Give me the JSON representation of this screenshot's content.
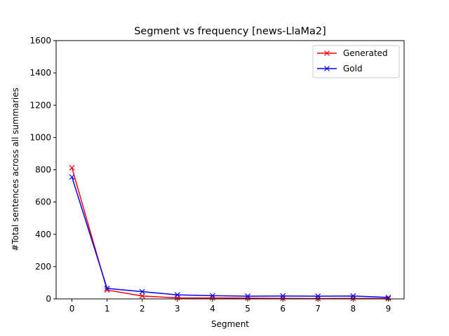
{
  "chart_data": {
    "type": "line",
    "title": "Segment vs frequency [news-LlaMa2]",
    "xlabel": "Segment",
    "ylabel": "#Total sentences across all summaries",
    "x": [
      0,
      1,
      2,
      3,
      4,
      5,
      6,
      7,
      8,
      9
    ],
    "xticks": [
      "0",
      "1",
      "2",
      "3",
      "4",
      "5",
      "6",
      "7",
      "8",
      "9"
    ],
    "xlim": [
      -0.45,
      9.45
    ],
    "ylim": [
      0,
      1600
    ],
    "yticks": [
      "0",
      "200",
      "400",
      "600",
      "800",
      "1000",
      "1200",
      "1400",
      "1600"
    ],
    "grid": false,
    "legend_position": "top-right",
    "series": [
      {
        "name": "Generated",
        "color": "#ff0000",
        "marker": "x",
        "values": [
          812,
          55,
          18,
          6,
          6,
          5,
          3,
          2,
          3,
          2
        ]
      },
      {
        "name": "Gold",
        "color": "#0000ff",
        "marker": "x",
        "values": [
          755,
          65,
          45,
          25,
          20,
          17,
          18,
          17,
          18,
          9
        ]
      }
    ]
  }
}
